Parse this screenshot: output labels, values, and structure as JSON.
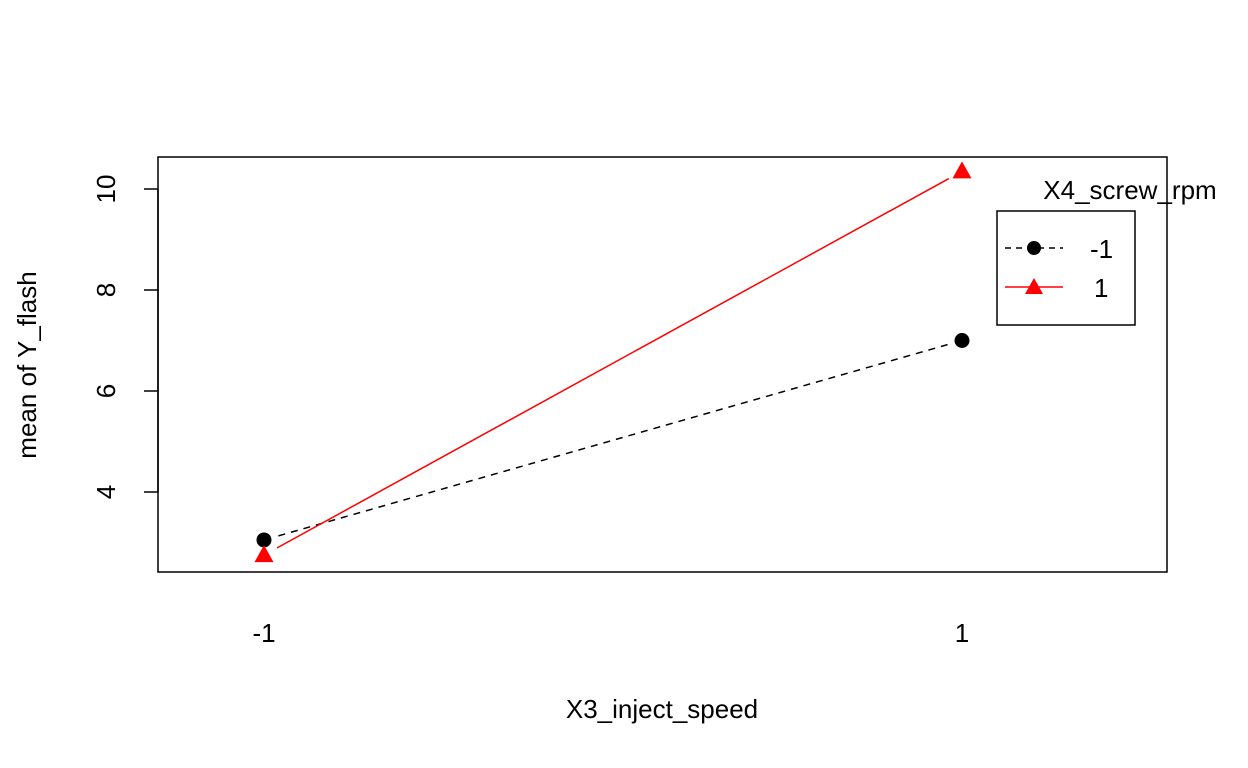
{
  "chart_data": {
    "type": "line",
    "xlabel": "X3_inject_speed",
    "ylabel": "mean of  Y_flash",
    "categories": [
      "-1",
      "1"
    ],
    "y_ticks": [
      "4",
      "6",
      "8",
      "10"
    ],
    "ylim": [
      2.4,
      10.6
    ],
    "legend": {
      "title": "X4_screw_rpm",
      "placement": "top-right"
    },
    "series": [
      {
        "name": "-1",
        "values": [
          3.05,
          7.0
        ],
        "color": "#000000",
        "line_style": "dashed",
        "marker": "circle"
      },
      {
        "name": "1",
        "values": [
          2.75,
          10.35
        ],
        "color": "#ff0000",
        "line_style": "solid",
        "marker": "triangle"
      }
    ]
  }
}
